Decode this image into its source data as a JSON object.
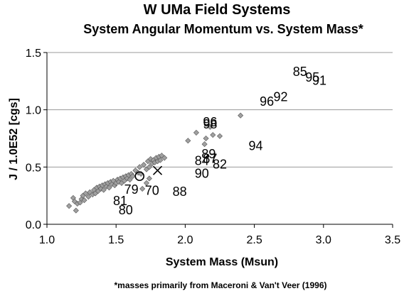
{
  "chart_data": {
    "type": "scatter",
    "title": "W UMa Field Systems",
    "subtitle": "System Angular Momentum vs. System Mass*",
    "xlabel": "System Mass (Msun)",
    "ylabel": "J / 1.0E52 [cgs]",
    "footnote": "*masses primarily from Maceroni & Van't Veer (1996)",
    "xlim": [
      1.0,
      3.5
    ],
    "ylim": [
      0.0,
      1.5
    ],
    "x_ticks": [
      "1.0",
      "1.5",
      "2.0",
      "2.5",
      "3.0",
      "3.5"
    ],
    "y_ticks": [
      "0.0",
      "0.5",
      "1.0",
      "1.5"
    ],
    "grid": "horizontal",
    "marker_color": "#a0a0a0",
    "field_points": [
      [
        1.16,
        0.16
      ],
      [
        1.19,
        0.23
      ],
      [
        1.2,
        0.2
      ],
      [
        1.21,
        0.12
      ],
      [
        1.22,
        0.18
      ],
      [
        1.24,
        0.19
      ],
      [
        1.25,
        0.22
      ],
      [
        1.26,
        0.25
      ],
      [
        1.27,
        0.21
      ],
      [
        1.28,
        0.27
      ],
      [
        1.3,
        0.24
      ],
      [
        1.31,
        0.28
      ],
      [
        1.33,
        0.26
      ],
      [
        1.34,
        0.3
      ],
      [
        1.35,
        0.27
      ],
      [
        1.36,
        0.32
      ],
      [
        1.37,
        0.29
      ],
      [
        1.38,
        0.33
      ],
      [
        1.39,
        0.31
      ],
      [
        1.4,
        0.34
      ],
      [
        1.41,
        0.3
      ],
      [
        1.42,
        0.35
      ],
      [
        1.43,
        0.33
      ],
      [
        1.44,
        0.36
      ],
      [
        1.45,
        0.32
      ],
      [
        1.46,
        0.37
      ],
      [
        1.47,
        0.35
      ],
      [
        1.48,
        0.38
      ],
      [
        1.49,
        0.34
      ],
      [
        1.5,
        0.36
      ],
      [
        1.51,
        0.39
      ],
      [
        1.52,
        0.37
      ],
      [
        1.53,
        0.4
      ],
      [
        1.54,
        0.36
      ],
      [
        1.55,
        0.41
      ],
      [
        1.56,
        0.38
      ],
      [
        1.57,
        0.42
      ],
      [
        1.58,
        0.4
      ],
      [
        1.59,
        0.43
      ],
      [
        1.6,
        0.39
      ],
      [
        1.61,
        0.44
      ],
      [
        1.62,
        0.42
      ],
      [
        1.64,
        0.47
      ],
      [
        1.66,
        0.45
      ],
      [
        1.67,
        0.5
      ],
      [
        1.68,
        0.44
      ],
      [
        1.7,
        0.52
      ],
      [
        1.72,
        0.48
      ],
      [
        1.73,
        0.55
      ],
      [
        1.74,
        0.5
      ],
      [
        1.75,
        0.57
      ],
      [
        1.76,
        0.53
      ],
      [
        1.77,
        0.56
      ],
      [
        1.78,
        0.54
      ],
      [
        1.79,
        0.58
      ],
      [
        1.8,
        0.55
      ],
      [
        1.81,
        0.59
      ],
      [
        1.82,
        0.56
      ],
      [
        1.83,
        0.6
      ],
      [
        1.85,
        0.58
      ],
      [
        1.72,
        0.36
      ],
      [
        1.69,
        0.31
      ],
      [
        1.74,
        0.4
      ],
      [
        2.02,
        0.73
      ],
      [
        2.08,
        0.8
      ],
      [
        2.15,
        0.75
      ],
      [
        2.18,
        0.85
      ],
      [
        2.25,
        0.77
      ],
      [
        2.4,
        0.95
      ],
      [
        2.14,
        0.7
      ],
      [
        2.2,
        0.78
      ]
    ],
    "open_circle": {
      "x": 1.67,
      "y": 0.42
    },
    "x_marker": {
      "x": 1.8,
      "y": 0.47
    },
    "labeled_points": [
      {
        "label": "85",
        "x": 2.83,
        "y": 1.34
      },
      {
        "label": "95",
        "x": 2.92,
        "y": 1.29
      },
      {
        "label": "91",
        "x": 2.97,
        "y": 1.26
      },
      {
        "label": "92",
        "x": 2.69,
        "y": 1.12
      },
      {
        "label": "96",
        "x": 2.59,
        "y": 1.08
      },
      {
        "label": "96",
        "x": 2.18,
        "y": 0.9
      },
      {
        "label": "98",
        "x": 2.18,
        "y": 0.88
      },
      {
        "label": "94",
        "x": 2.51,
        "y": 0.69
      },
      {
        "label": "89",
        "x": 2.17,
        "y": 0.62
      },
      {
        "label": "87",
        "x": 2.18,
        "y": 0.58
      },
      {
        "label": "84",
        "x": 2.12,
        "y": 0.56
      },
      {
        "label": "82",
        "x": 2.25,
        "y": 0.53
      },
      {
        "label": "90",
        "x": 2.12,
        "y": 0.45
      },
      {
        "label": "79",
        "x": 1.61,
        "y": 0.31
      },
      {
        "label": "70",
        "x": 1.76,
        "y": 0.3
      },
      {
        "label": "88",
        "x": 1.96,
        "y": 0.29
      },
      {
        "label": "81",
        "x": 1.53,
        "y": 0.21
      },
      {
        "label": "80",
        "x": 1.57,
        "y": 0.13
      }
    ]
  }
}
